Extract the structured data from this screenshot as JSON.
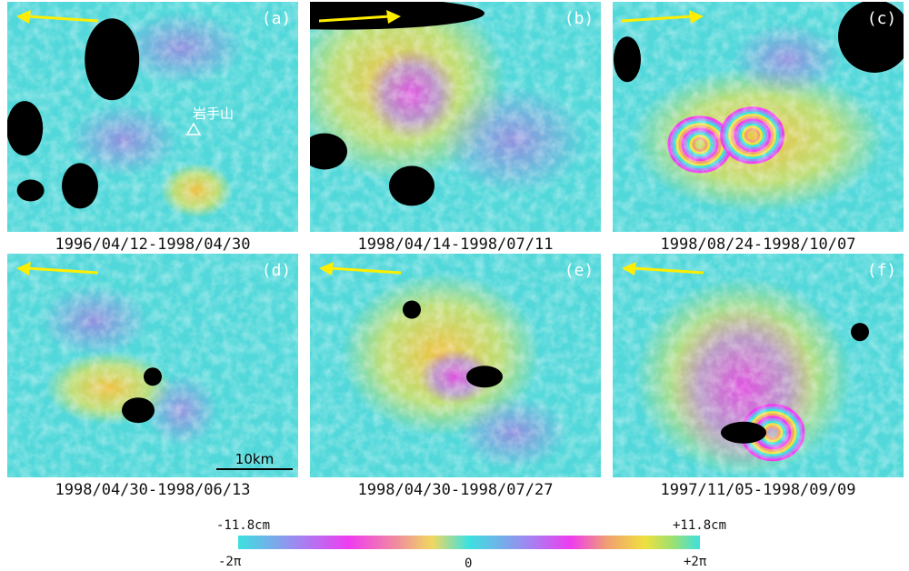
{
  "panels": [
    {
      "label": "(a)",
      "date": "1996/04/12-1998/04/30"
    },
    {
      "label": "(b)",
      "date": "1998/04/14-1998/07/11"
    },
    {
      "label": "(c)",
      "date": "1998/08/24-1998/10/07"
    },
    {
      "label": "(d)",
      "date": "1998/04/30-1998/06/13"
    },
    {
      "label": "(e)",
      "date": "1998/04/30-1998/07/27"
    },
    {
      "label": "(f)",
      "date": "1997/11/05-1998/09/09"
    }
  ],
  "annotation": "岩手山",
  "scale_bar": "10km",
  "colorbar": {
    "top_left": "-11.8cm",
    "top_right": "+11.8cm",
    "bottom_left": "-2π",
    "bottom_center": "0",
    "bottom_right": "+2π"
  }
}
